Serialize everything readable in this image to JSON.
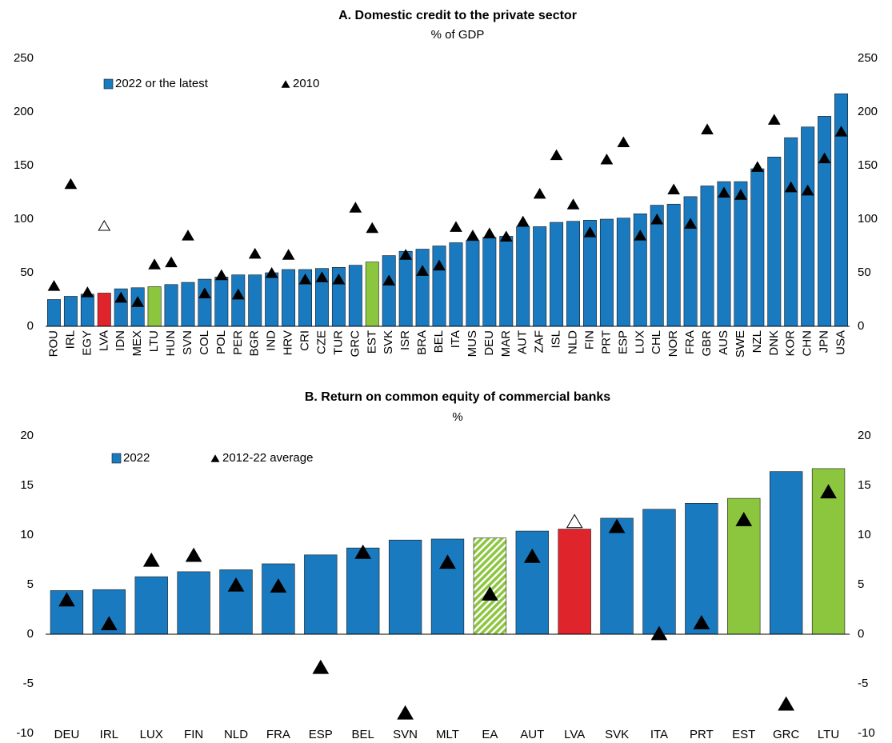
{
  "chart_data": [
    {
      "type": "bar",
      "title": "A. Domestic credit to the private sector",
      "subtitle": "% of GDP",
      "categories": [
        "ROU",
        "IRL",
        "EGY",
        "LVA",
        "IDN",
        "MEX",
        "LTU",
        "HUN",
        "SVN",
        "COL",
        "POL",
        "PER",
        "BGR",
        "IND",
        "HRV",
        "CRI",
        "CZE",
        "TUR",
        "GRC",
        "EST",
        "SVK",
        "ISR",
        "BRA",
        "BEL",
        "ITA",
        "MUS",
        "DEU",
        "MAR",
        "AUT",
        "ZAF",
        "ISL",
        "NLD",
        "FIN",
        "PRT",
        "ESP",
        "LUX",
        "CHL",
        "NOR",
        "FRA",
        "GBR",
        "AUS",
        "SWE",
        "NZL",
        "DNK",
        "KOR",
        "CHN",
        "JPN",
        "USA"
      ],
      "series": [
        {
          "name": "2022 or the latest",
          "kind": "bar",
          "color": "#1a7ac0",
          "colors": [
            "#1a7ac0",
            "#1a7ac0",
            "#1a7ac0",
            "#e0242b",
            "#1a7ac0",
            "#1a7ac0",
            "#8cc63f",
            "#1a7ac0",
            "#1a7ac0",
            "#1a7ac0",
            "#1a7ac0",
            "#1a7ac0",
            "#1a7ac0",
            "#1a7ac0",
            "#1a7ac0",
            "#1a7ac0",
            "#1a7ac0",
            "#1a7ac0",
            "#1a7ac0",
            "#8cc63f",
            "#1a7ac0",
            "#1a7ac0",
            "#1a7ac0",
            "#1a7ac0",
            "#1a7ac0",
            "#1a7ac0",
            "#1a7ac0",
            "#1a7ac0",
            "#1a7ac0",
            "#1a7ac0",
            "#1a7ac0",
            "#1a7ac0",
            "#1a7ac0",
            "#1a7ac0",
            "#1a7ac0",
            "#1a7ac0",
            "#1a7ac0",
            "#1a7ac0",
            "#1a7ac0",
            "#1a7ac0",
            "#1a7ac0",
            "#1a7ac0",
            "#1a7ac0",
            "#1a7ac0",
            "#1a7ac0",
            "#1a7ac0",
            "#1a7ac0",
            "#1a7ac0"
          ],
          "values": [
            25,
            28,
            30,
            31,
            35,
            36,
            37,
            39,
            41,
            44,
            46,
            48,
            48,
            50,
            53,
            53,
            54,
            55,
            57,
            60,
            66,
            70,
            72,
            75,
            78,
            80,
            83,
            84,
            93,
            93,
            97,
            98,
            99,
            100,
            101,
            105,
            113,
            114,
            121,
            131,
            135,
            135,
            147,
            158,
            176,
            186,
            196,
            217
          ]
        },
        {
          "name": "2010",
          "kind": "triangle",
          "color": "#000000",
          "colors": [
            "#000000",
            "#000000",
            "#000000",
            "#ffffff",
            "#000000",
            "#000000",
            "#000000",
            "#000000",
            "#000000",
            "#000000",
            "#000000",
            "#000000",
            "#000000",
            "#000000",
            "#000000",
            "#000000",
            "#000000",
            "#000000",
            "#000000",
            "#000000",
            "#000000",
            "#000000",
            "#000000",
            "#000000",
            "#000000",
            "#000000",
            "#000000",
            "#000000",
            "#000000",
            "#000000",
            "#000000",
            "#000000",
            "#000000",
            "#000000",
            "#000000",
            "#000000",
            "#000000",
            "#000000",
            "#000000",
            "#000000",
            "#000000",
            "#000000",
            "#000000",
            "#000000",
            "#000000",
            "#000000",
            "#000000",
            "#000000"
          ],
          "values": [
            38,
            133,
            32,
            94,
            27,
            23,
            58,
            60,
            85,
            31,
            48,
            30,
            68,
            50,
            67,
            44,
            46,
            44,
            111,
            92,
            43,
            67,
            52,
            57,
            93,
            85,
            87,
            84,
            98,
            124,
            160,
            114,
            88,
            156,
            172,
            85,
            100,
            128,
            96,
            184,
            125,
            123,
            149,
            193,
            130,
            127,
            157,
            182
          ]
        }
      ],
      "ylim": [
        0,
        250
      ],
      "yticks": [
        0,
        50,
        100,
        150,
        200,
        250
      ],
      "label_rotation": -90
    },
    {
      "type": "bar",
      "title": "B. Return on common equity of commercial banks",
      "subtitle": "%",
      "categories": [
        "DEU",
        "IRL",
        "LUX",
        "FIN",
        "NLD",
        "FRA",
        "ESP",
        "BEL",
        "SVN",
        "MLT",
        "EA",
        "AUT",
        "LVA",
        "SVK",
        "ITA",
        "PRT",
        "EST",
        "GRC",
        "LTU"
      ],
      "series": [
        {
          "name": "2022",
          "kind": "bar",
          "color": "#1a7ac0",
          "colors": [
            "#1a7ac0",
            "#1a7ac0",
            "#1a7ac0",
            "#1a7ac0",
            "#1a7ac0",
            "#1a7ac0",
            "#1a7ac0",
            "#1a7ac0",
            "#1a7ac0",
            "#1a7ac0",
            "#8cc63f",
            "#1a7ac0",
            "#e0242b",
            "#1a7ac0",
            "#1a7ac0",
            "#1a7ac0",
            "#8cc63f",
            "#1a7ac0",
            "#8cc63f"
          ],
          "patterns": [
            null,
            null,
            null,
            null,
            null,
            null,
            null,
            null,
            null,
            null,
            "stripes",
            null,
            null,
            null,
            null,
            null,
            null,
            null,
            null
          ],
          "values": [
            4.4,
            4.5,
            5.8,
            6.3,
            6.5,
            7.1,
            8.0,
            8.7,
            9.5,
            9.6,
            9.7,
            10.4,
            10.6,
            11.7,
            12.6,
            13.2,
            13.7,
            16.4,
            16.7
          ]
        },
        {
          "name": "2012-22 average",
          "kind": "triangle",
          "color": "#000000",
          "colors": [
            "#000000",
            "#000000",
            "#000000",
            "#000000",
            "#000000",
            "#000000",
            "#000000",
            "#000000",
            "#000000",
            "#000000",
            "#000000",
            "#000000",
            "#ffffff",
            "#000000",
            "#000000",
            "#000000",
            "#000000",
            "#000000",
            "#000000"
          ],
          "values": [
            3.5,
            1.1,
            7.5,
            8.0,
            5.0,
            4.9,
            -3.3,
            8.3,
            -7.9,
            7.3,
            4.1,
            7.9,
            11.4,
            10.9,
            0.1,
            1.2,
            11.6,
            -7.0,
            14.4
          ]
        }
      ],
      "ylim": [
        -10,
        20
      ],
      "yticks": [
        -10,
        -5,
        0,
        5,
        10,
        15,
        20
      ],
      "label_rotation": 0
    }
  ]
}
